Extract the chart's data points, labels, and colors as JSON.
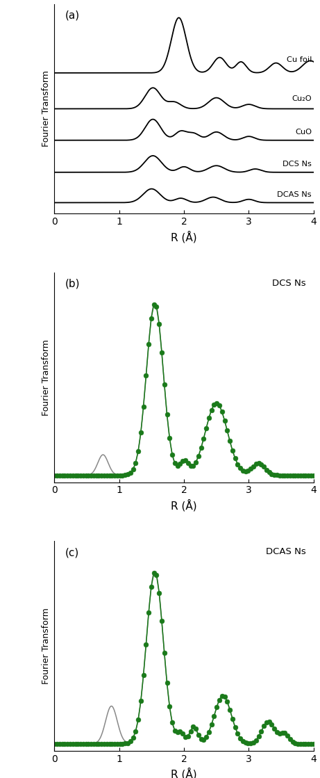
{
  "panel_a_label": "(a)",
  "panel_b_label": "(b)",
  "panel_c_label": "(c)",
  "panel_b_title": "DCS Ns",
  "panel_c_title": "DCAS Ns",
  "xlabel": "R (Å)",
  "ylabel": "Fourier Transform",
  "xlim": [
    0,
    4
  ],
  "xticks": [
    0,
    1,
    2,
    3,
    4
  ],
  "line_color": "#000000",
  "green_color": "#1a7a1a",
  "gray_color": "#888888",
  "curve_labels": [
    "Cu foil",
    "Cu₂O",
    "CuO",
    "DCS Ns",
    "DCAS Ns"
  ],
  "offsets": [
    2.4,
    1.75,
    1.18,
    0.6,
    0.05
  ]
}
